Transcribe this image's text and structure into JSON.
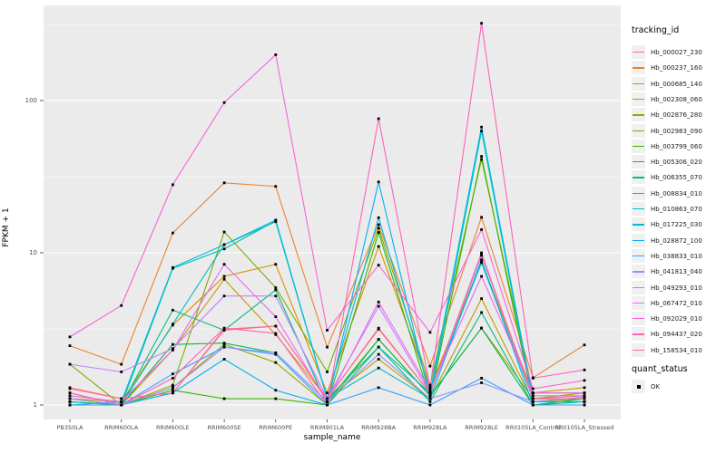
{
  "figure": {
    "panel_bg": "#EBEBEB",
    "grid_major": "#FFFFFF",
    "grid_minor": "#F7F7F7",
    "tick_color": "#333333",
    "tick_text_color": "#4D4D4D",
    "point_color": "#000000"
  },
  "axes": {
    "x_title": "sample_name",
    "y_title": "FPKM + 1",
    "y_tick_labels": [
      "100",
      "10",
      "1"
    ]
  },
  "legend": {
    "tracking_title": "tracking_id",
    "quant_title": "quant_status",
    "quant_ok_label": "OK"
  },
  "chart_data": {
    "type": "line",
    "title": "",
    "xlabel": "sample_name",
    "ylabel": "FPKM + 1",
    "y_scale": "log10",
    "y_major_ticks": [
      1,
      10,
      100
    ],
    "y_minor_ticks": [
      3.162,
      31.62,
      316.2
    ],
    "ylim": [
      0.8,
      420
    ],
    "legend_position": "right",
    "grid": true,
    "quant_status": "OK",
    "categories": [
      "PB350LA",
      "RRIM600LA",
      "RRIM600LE",
      "RRIM600SE",
      "RRIM600PE",
      "RRIM901LA",
      "RRIM928BA",
      "RRIM928LA",
      "RRIM928LE",
      "RRII105LA_Control",
      "RRII105LA_Stressed"
    ],
    "series": [
      {
        "name": "Hb_000027_230",
        "color": "#F8766D",
        "values": [
          1.3,
          1.1,
          1.2,
          3.1,
          3.3,
          1.1,
          3.15,
          1.2,
          9.8,
          1.1,
          1.15
        ]
      },
      {
        "name": "Hb_000237_160",
        "color": "#EA8331",
        "values": [
          2.45,
          1.85,
          13.5,
          28.8,
          27.3,
          2.4,
          15.3,
          1.8,
          17.1,
          1.51,
          2.48
        ]
      },
      {
        "name": "Hb_000685_140",
        "color": "#D89000",
        "values": [
          1.1,
          1.05,
          3.35,
          7.0,
          8.4,
          1.2,
          11.0,
          1.3,
          8.7,
          1.2,
          1.3
        ]
      },
      {
        "name": "Hb_002308_060",
        "color": "#C09B00",
        "values": [
          1.05,
          1.0,
          2.3,
          6.7,
          2.9,
          1.1,
          2.0,
          1.1,
          5.0,
          1.05,
          1.1
        ]
      },
      {
        "name": "Hb_002876_280",
        "color": "#A3A500",
        "values": [
          1.2,
          1.0,
          1.3,
          2.5,
          1.9,
          1.0,
          2.7,
          1.15,
          3.2,
          1.1,
          1.2
        ]
      },
      {
        "name": "Hb_002983_090",
        "color": "#7CAE00",
        "values": [
          1.85,
          1.0,
          1.35,
          13.7,
          5.9,
          1.65,
          14.5,
          1.35,
          41.0,
          1.2,
          1.2
        ]
      },
      {
        "name": "Hb_003799_060",
        "color": "#39B600",
        "values": [
          1.0,
          1.0,
          1.25,
          1.1,
          1.1,
          1.0,
          13.6,
          1.1,
          43.0,
          1.05,
          1.05
        ]
      },
      {
        "name": "Hb_005306_020",
        "color": "#00BB4E",
        "values": [
          1.1,
          1.0,
          2.5,
          2.55,
          2.2,
          1.05,
          2.7,
          1.15,
          3.2,
          1.0,
          1.1
        ]
      },
      {
        "name": "Hb_006355_070",
        "color": "#00BF7D",
        "values": [
          1.05,
          1.0,
          4.2,
          3.1,
          5.7,
          1.0,
          2.4,
          1.05,
          4.05,
          1.0,
          1.05
        ]
      },
      {
        "name": "Hb_008834_010",
        "color": "#00C1A3",
        "values": [
          1.0,
          1.0,
          7.9,
          10.6,
          16.2,
          1.1,
          2.4,
          1.2,
          8.6,
          1.1,
          1.1
        ]
      },
      {
        "name": "Hb_010863_070",
        "color": "#00BFC4",
        "values": [
          1.0,
          1.0,
          3.4,
          11.3,
          16.0,
          1.1,
          1.75,
          1.1,
          63.0,
          1.05,
          1.05
        ]
      },
      {
        "name": "Hb_017225_030",
        "color": "#00BAE0",
        "values": [
          1.0,
          1.05,
          8.0,
          11.3,
          16.4,
          1.1,
          17.0,
          1.2,
          67.0,
          1.1,
          1.1
        ]
      },
      {
        "name": "Hb_028872_100",
        "color": "#00B0F6",
        "values": [
          1.0,
          1.0,
          1.2,
          2.0,
          1.25,
          1.0,
          29.2,
          1.1,
          9.0,
          1.0,
          1.0
        ]
      },
      {
        "name": "Hb_038833_010",
        "color": "#35A2FF",
        "values": [
          1.0,
          1.0,
          1.6,
          2.4,
          2.15,
          1.0,
          1.3,
          1.0,
          1.5,
          1.0,
          1.0
        ]
      },
      {
        "name": "Hb_041813_040",
        "color": "#9590FF",
        "values": [
          1.1,
          1.0,
          1.3,
          2.4,
          2.2,
          1.05,
          2.15,
          1.1,
          1.4,
          1.05,
          1.13
        ]
      },
      {
        "name": "Hb_049293_010",
        "color": "#C77CFF",
        "values": [
          1.85,
          1.65,
          2.35,
          5.2,
          5.2,
          1.1,
          4.45,
          1.2,
          9.6,
          1.15,
          1.15
        ]
      },
      {
        "name": "Hb_067472_010",
        "color": "#E76BF3",
        "values": [
          1.15,
          1.05,
          2.3,
          8.4,
          3.8,
          1.05,
          4.75,
          1.25,
          7.0,
          1.2,
          1.2
        ]
      },
      {
        "name": "Hb_092029_010",
        "color": "#FA62DB",
        "values": [
          2.8,
          4.5,
          28.0,
          97.0,
          200.0,
          3.1,
          8.3,
          3.0,
          14.2,
          1.28,
          1.45
        ]
      },
      {
        "name": "Hb_094437_020",
        "color": "#FF62BC",
        "values": [
          1.2,
          1.0,
          1.5,
          3.2,
          2.95,
          1.0,
          76.0,
          1.3,
          322.0,
          1.5,
          1.7
        ]
      },
      {
        "name": "Hb_158534_010",
        "color": "#FF6A98",
        "values": [
          1.28,
          1.1,
          1.2,
          3.15,
          3.3,
          1.1,
          3.2,
          1.2,
          10.0,
          1.1,
          1.1
        ]
      }
    ]
  }
}
